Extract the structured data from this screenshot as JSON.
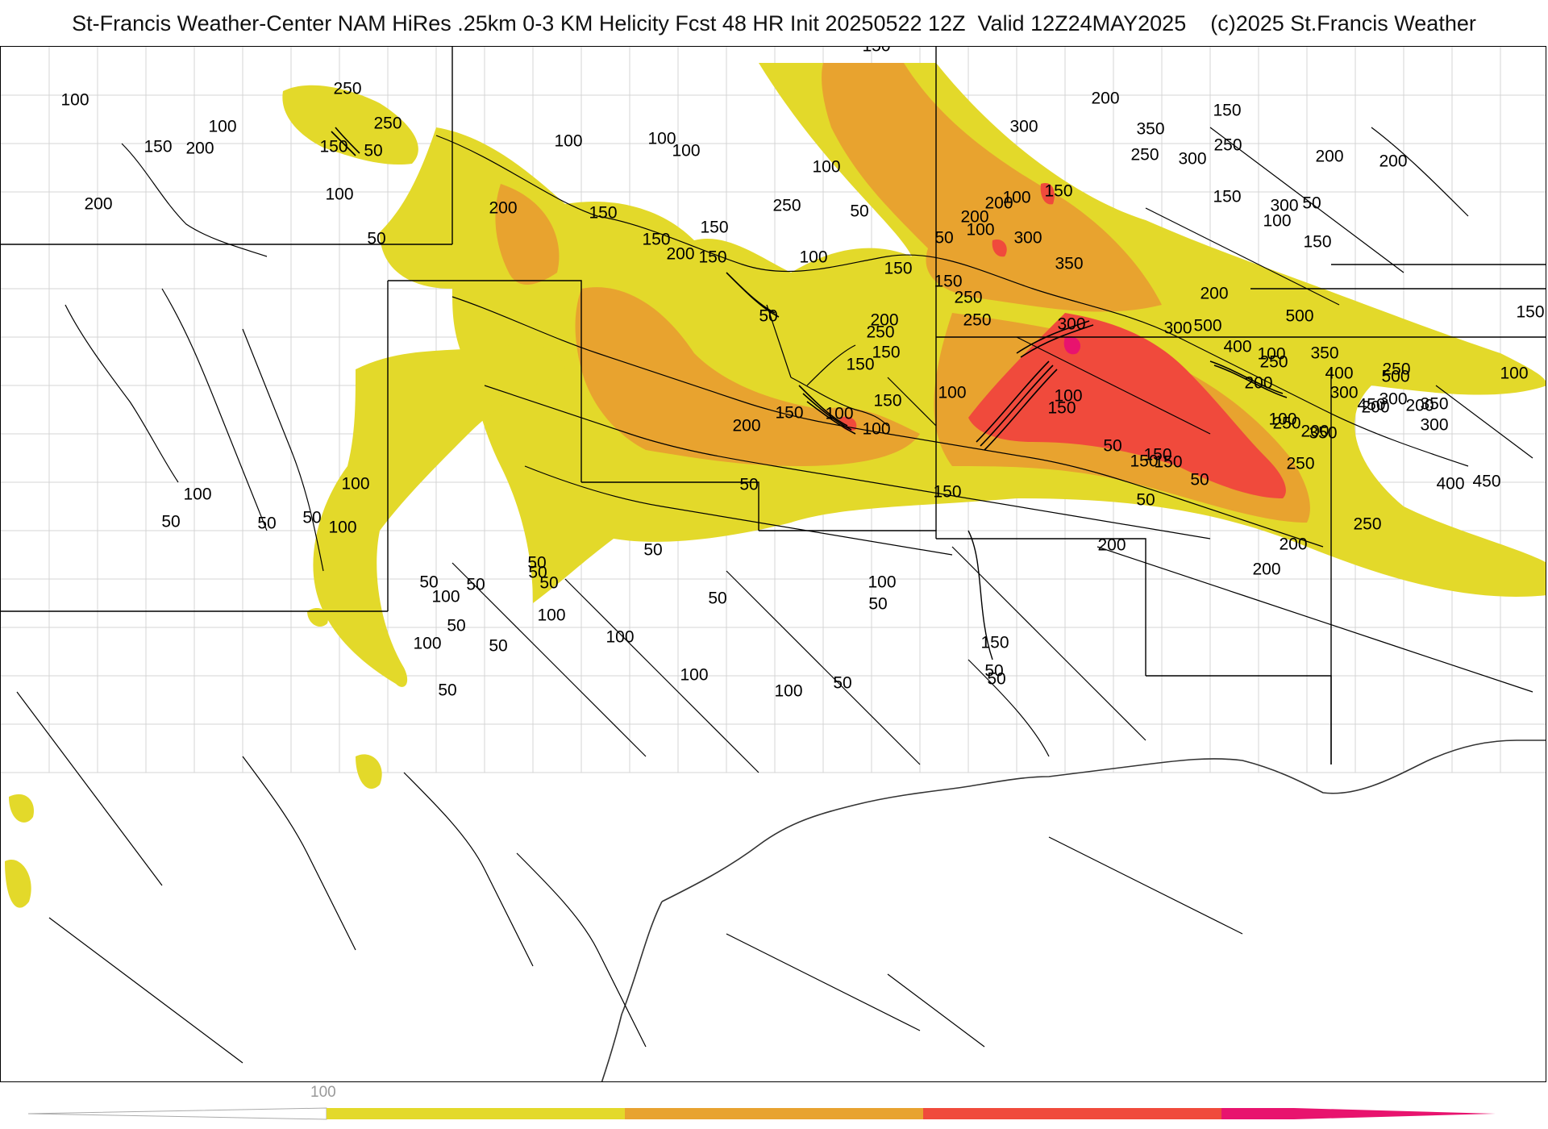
{
  "header": {
    "title": "St-Francis Weather-Center NAM HiRes .25km 0-3 KM Helicity Fcst 48 HR Init 20250522 12Z  Valid 12Z24MAY2025    (c)2025 St.Francis Weather"
  },
  "contour_labels": [
    "100",
    "250",
    "100",
    "150",
    "200",
    "250",
    "150",
    "50",
    "100",
    "100",
    "200",
    "100",
    "50",
    "200",
    "150",
    "250",
    "150",
    "100",
    "100",
    "50",
    "150",
    "150",
    "200",
    "150",
    "250",
    "50",
    "300",
    "250",
    "200",
    "350",
    "300",
    "150",
    "100",
    "200",
    "150",
    "300",
    "150",
    "200",
    "300",
    "200",
    "100",
    "50",
    "250",
    "100",
    "150",
    "150",
    "200",
    "150",
    "100",
    "50",
    "200",
    "250",
    "150",
    "250",
    "300",
    "350",
    "100",
    "150",
    "300",
    "400",
    "200",
    "500",
    "250",
    "100",
    "500",
    "400",
    "350",
    "300",
    "250",
    "450",
    "400",
    "300",
    "200",
    "250",
    "350",
    "200",
    "100",
    "150",
    "300",
    "450",
    "500",
    "350",
    "250",
    "200",
    "150",
    "250",
    "200",
    "100",
    "150",
    "50",
    "100",
    "150",
    "150",
    "100",
    "150",
    "200",
    "50",
    "100",
    "150",
    "100",
    "50",
    "50",
    "150",
    "200",
    "200",
    "200",
    "150",
    "100",
    "50",
    "50",
    "50",
    "50",
    "50",
    "100",
    "100",
    "50",
    "50",
    "50",
    "100",
    "100",
    "50",
    "50",
    "50",
    "50",
    "100",
    "50",
    "50",
    "100",
    "100",
    "50",
    "50",
    "100",
    "50"
  ],
  "legend": {
    "tick_label": "100",
    "colors": [
      "#e3d92a",
      "#e8a32f",
      "#f04a3c",
      "#e8136e"
    ]
  },
  "colors": {
    "yellow": "#e3d92a",
    "orange": "#e8a32f",
    "red": "#f04a3c",
    "magenta": "#e8136e",
    "coast": "#555555",
    "state_line": "#000000",
    "county_line": "#c8c8c8"
  }
}
